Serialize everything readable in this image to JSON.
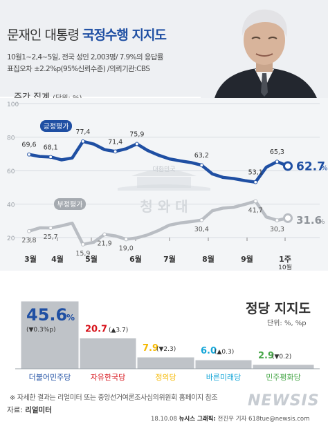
{
  "header": {
    "title_plain": "문재인 대통령",
    "title_bold": "국정수행 지지도",
    "survey_line1": "10월1~2,4~5일, 전국 성인 2,003명/ 7.9%의 응답률",
    "survey_line2": "표집오차 ±2.2%p(95%신뢰수준) /의뢰기관:CBS"
  },
  "section": {
    "label": "주간 집계",
    "unit": "(단위: %)"
  },
  "watermark": {
    "small": "대한민국",
    "big": "청 와 대"
  },
  "chart_data": [
    {
      "type": "line",
      "title": "주간 집계",
      "unit": "%",
      "ylim": [
        0,
        100
      ],
      "yticks": [
        20,
        40,
        60,
        80,
        100
      ],
      "x_tick_labels": [
        "3월",
        "4월",
        "5월",
        "6월",
        "7월",
        "8월",
        "9월",
        "1주"
      ],
      "x_tick_sublabel": "10월",
      "grid": true,
      "series": [
        {
          "name": "긍정평가",
          "color": "#1f4fa3",
          "values": [
            69.6,
            68.4,
            68.1,
            66.4,
            67.5,
            77.4,
            75.8,
            72.5,
            71.4,
            73.0,
            75.9,
            72.0,
            69.2,
            67.0,
            65.8,
            64.8,
            63.2,
            58.0,
            55.9,
            55.2,
            54.0,
            53.1,
            62.0,
            65.3,
            62.7
          ],
          "labels": [
            {
              "idx": 0,
              "text": "69,6"
            },
            {
              "idx": 2,
              "text": "68,1"
            },
            {
              "idx": 5,
              "text": "77,4"
            },
            {
              "idx": 8,
              "text": "71,4"
            },
            {
              "idx": 10,
              "text": "75,9"
            },
            {
              "idx": 16,
              "text": "63,2"
            },
            {
              "idx": 21,
              "text": "53,1"
            },
            {
              "idx": 23,
              "text": "65,3"
            }
          ],
          "final_label": "62.7"
        },
        {
          "name": "부정평가",
          "color": "#b9bdc3",
          "values": [
            23.8,
            25.8,
            25.7,
            27.0,
            28.6,
            15.9,
            17.2,
            21.9,
            21.0,
            19.0,
            19.8,
            21.6,
            24.2,
            27.4,
            28.7,
            29.5,
            30.4,
            36.0,
            37.6,
            38.1,
            39.8,
            41.7,
            32.3,
            30.3,
            31.6
          ],
          "labels": [
            {
              "idx": 0,
              "text": "23,8"
            },
            {
              "idx": 2,
              "text": "25,7"
            },
            {
              "idx": 5,
              "text": "15,9"
            },
            {
              "idx": 7,
              "text": "21,9"
            },
            {
              "idx": 9,
              "text": "19,0"
            },
            {
              "idx": 16,
              "text": "30,4"
            },
            {
              "idx": 21,
              "text": "41,7"
            },
            {
              "idx": 23,
              "text": "30,3"
            }
          ],
          "final_label": "31.6"
        }
      ]
    },
    {
      "type": "bar",
      "title": "정당 지지도",
      "unit": "단위: %, %p",
      "ylim": [
        0,
        50
      ],
      "categories": [
        "더불어민주당",
        "자유한국당",
        "정의당",
        "바른미래당",
        "민주평화당"
      ],
      "values": [
        45.6,
        20.7,
        7.9,
        6.0,
        2.9
      ],
      "value_labels": [
        "45.6",
        "20.7",
        "7.9",
        "6.0",
        "2.9"
      ],
      "changes": [
        "(▼0.3%p)",
        "(▲3.7)",
        "(▼2.3)",
        "(▲0.3)",
        "(▼0.2)"
      ],
      "party_colors": [
        "#1f4fa3",
        "#d7121a",
        "#f5b800",
        "#14a6d8",
        "#4aa84b"
      ]
    }
  ],
  "party": {
    "title": "정당 지지도",
    "unit": "단위: %, %p"
  },
  "footer": {
    "note": "※ 자세한 결과는 리얼미터 또는 중앙선거여론조사심의위원회 홈페이지 참조",
    "source_label": "자료:",
    "source_name": "리얼미터",
    "date": "18.10.08",
    "credit_bold": "뉴시스 그래픽:",
    "credit_rest": "전진우 기자 618tue@newsis.com",
    "logo": "NEWSIS"
  }
}
